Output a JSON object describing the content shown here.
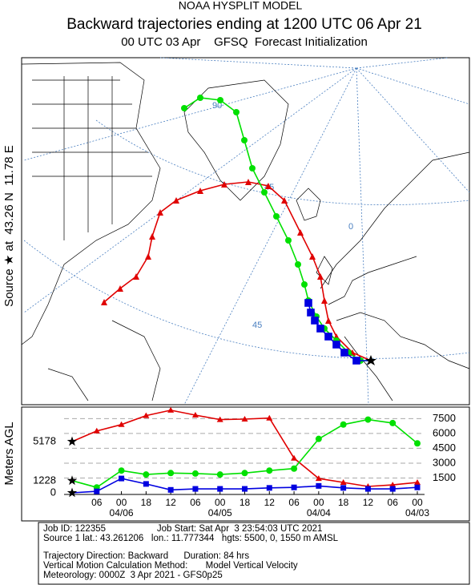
{
  "header": {
    "lines": [
      "NOAA HYSPLIT MODEL",
      "Backward trajectories ending at 1200 UTC 06 Apr 21",
      "00 UTC 03 Apr    GFSQ  Forecast Initialization"
    ]
  },
  "map": {
    "side_label": "Source ★ at  43.26 N  11.78 E",
    "labels": [
      "90",
      "45",
      "0",
      "45"
    ]
  },
  "chart_data": {
    "type": "line",
    "ylabel": "Meters AGL",
    "x": [
      0,
      6,
      12,
      18,
      24,
      30,
      36,
      42,
      48,
      54,
      60,
      66,
      72,
      78,
      84
    ],
    "xlim": [
      0,
      84
    ],
    "ylim": [
      0,
      8500
    ],
    "yticks": [
      1500,
      3000,
      4500,
      6000,
      7500
    ],
    "xticks": [
      {
        "value": 6,
        "label": "06"
      },
      {
        "value": 12,
        "label": "00"
      },
      {
        "value": 18,
        "label": "18"
      },
      {
        "value": 24,
        "label": "12"
      },
      {
        "value": 30,
        "label": "06"
      },
      {
        "value": 36,
        "label": "00"
      },
      {
        "value": 42,
        "label": "18"
      },
      {
        "value": 48,
        "label": "12"
      },
      {
        "value": 54,
        "label": "06"
      },
      {
        "value": 60,
        "label": "00"
      },
      {
        "value": 66,
        "label": "18"
      },
      {
        "value": 72,
        "label": "12"
      },
      {
        "value": 78,
        "label": "06"
      },
      {
        "value": 84,
        "label": "00"
      }
    ],
    "xdates": [
      {
        "value": 12,
        "label": "04/06"
      },
      {
        "value": 36,
        "label": "04/05"
      },
      {
        "value": 60,
        "label": "04/04"
      },
      {
        "value": 84,
        "label": "04/03"
      }
    ],
    "grid": true,
    "series": [
      {
        "color": "#e00000",
        "marker": "triangle",
        "values": [
          5178,
          6250,
          6900,
          7800,
          8350,
          7850,
          7400,
          7450,
          7550,
          3500,
          1450,
          1050,
          650,
          800,
          1050
        ]
      },
      {
        "color": "#00e000",
        "marker": "circle",
        "values": [
          1228,
          550,
          2250,
          1850,
          2000,
          1950,
          1850,
          2000,
          2250,
          2450,
          5450,
          6900,
          7400,
          7050,
          5000
        ]
      },
      {
        "color": "#0000e0",
        "marker": "square",
        "values": [
          0,
          150,
          1450,
          900,
          300,
          400,
          400,
          400,
          500,
          550,
          700,
          500,
          400,
          400,
          550
        ]
      }
    ]
  },
  "footer": {
    "lines": [
      "Job ID: 122355                    Job Start: Sat Apr  3 23:54:03 UTC 2021",
      "Source 1 lat.: 43.261206   lon.: 11.777344   hgts: 5500, 0, 1550 m AMSL",
      "Trajectory Direction: Backward      Duration: 84 hrs",
      "Vertical Motion Calculation Method:       Model Vertical Velocity",
      "Meteorology: 0000Z  3 Apr 2021 - GFS0p25"
    ]
  }
}
